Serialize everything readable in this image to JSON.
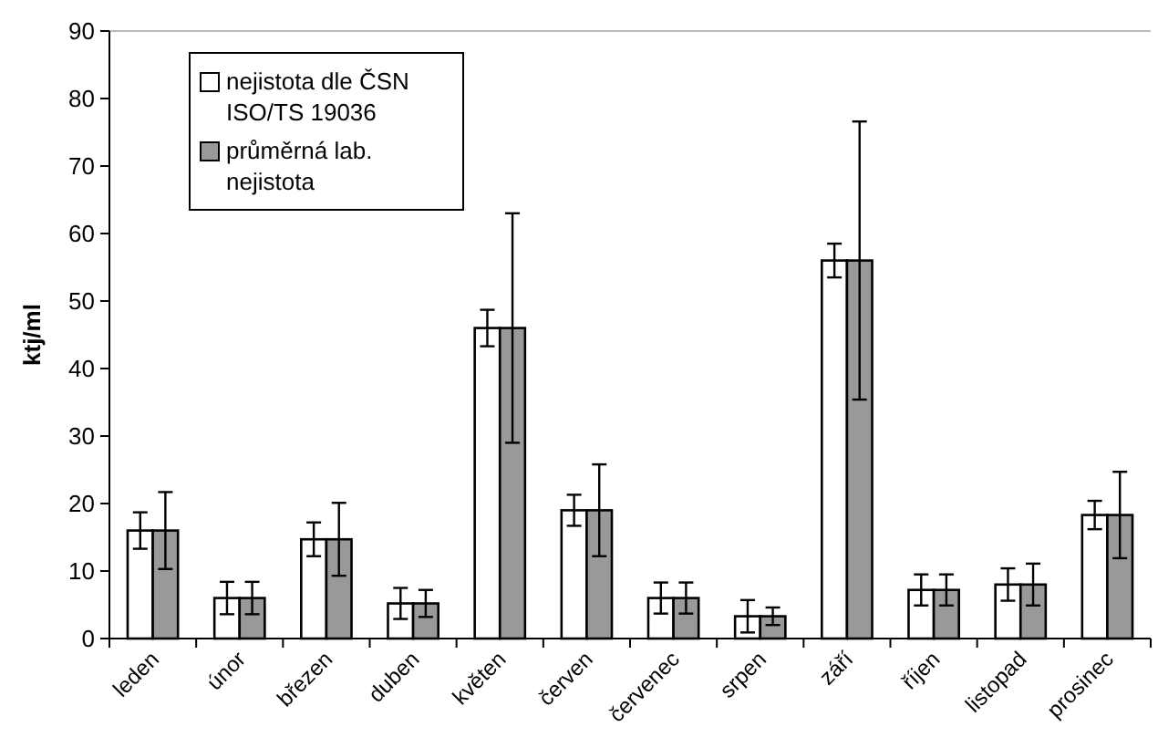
{
  "chart_data": {
    "type": "bar",
    "ylabel": "ktj/ml",
    "categories": [
      "leden",
      "únor",
      "březen",
      "duben",
      "květen",
      "červen",
      "červenec",
      "srpen",
      "září",
      "říjen",
      "listopad",
      "prosinec"
    ],
    "series": [
      {
        "name": "nejistota dle ČSN ISO/TS 19036",
        "color": "#ffffff",
        "values": [
          16,
          6,
          14.7,
          5.2,
          46,
          19,
          6,
          3.3,
          56,
          7.2,
          8,
          18.3
        ],
        "errors": [
          2.7,
          2.4,
          2.5,
          2.3,
          2.7,
          2.3,
          2.3,
          2.4,
          2.5,
          2.3,
          2.4,
          2.1
        ]
      },
      {
        "name": "průměrná lab. nejistota",
        "color": "#999999",
        "values": [
          16,
          6,
          14.7,
          5.2,
          46,
          19,
          6,
          3.3,
          56,
          7.2,
          8,
          18.3
        ],
        "errors": [
          5.7,
          2.4,
          5.4,
          2,
          17,
          6.8,
          2.3,
          1.3,
          20.6,
          2.3,
          3.1,
          6.4
        ]
      }
    ],
    "ylim": [
      0,
      90
    ],
    "yticks": [
      0,
      10,
      20,
      30,
      40,
      50,
      60,
      70,
      80,
      90
    ],
    "legend": "top left"
  }
}
